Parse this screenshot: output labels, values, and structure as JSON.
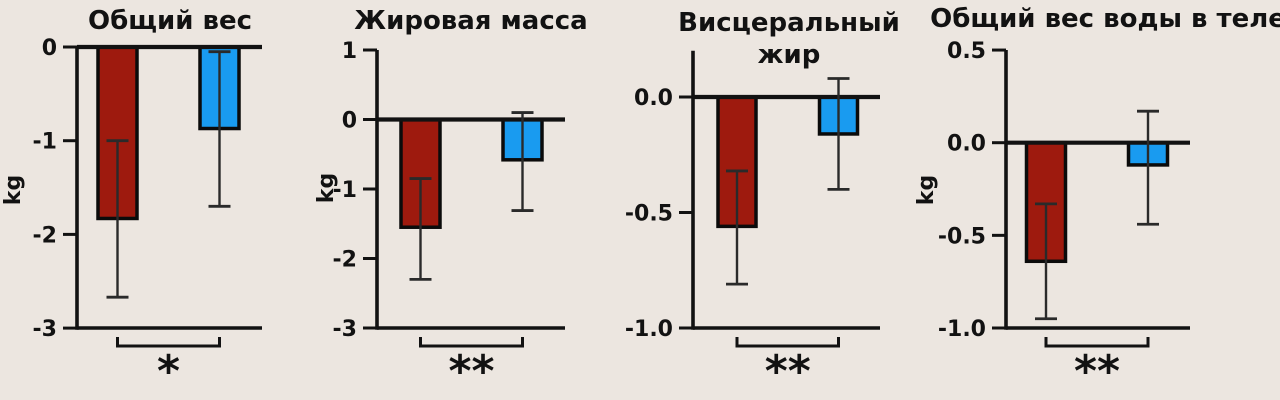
{
  "figure": {
    "background_color": "#ece6e0",
    "axis_color": "#121212",
    "error_bar_color": "#2a2a2a",
    "text_color": "#121212",
    "bar_colors": {
      "red": "#9e1a0e",
      "blue": "#199bf0"
    },
    "bar_outline_color": "#0b0b0b"
  },
  "chart_data": [
    {
      "type": "bar",
      "title": "Общий вес",
      "title_lines": [
        "Общий вес"
      ],
      "ylabel": "kg",
      "ylim": [
        -3,
        0
      ],
      "yticks": [
        {
          "value": 0,
          "label": "0"
        },
        {
          "value": -1,
          "label": "-1"
        },
        {
          "value": -2,
          "label": "-2"
        },
        {
          "value": -3,
          "label": "-3"
        }
      ],
      "series": [
        {
          "name": "red",
          "value": -1.83,
          "err_high": -1.0,
          "err_low": -2.67
        },
        {
          "name": "blue",
          "value": -0.87,
          "err_high": -0.05,
          "err_low": -1.7
        }
      ],
      "significance": "*"
    },
    {
      "type": "bar",
      "title": "Жировая масса",
      "title_lines": [
        "Жировая масса"
      ],
      "ylabel": "kg",
      "ylim": [
        -3,
        1
      ],
      "yticks": [
        {
          "value": 1,
          "label": "1"
        },
        {
          "value": 0,
          "label": "0"
        },
        {
          "value": -1,
          "label": "-1"
        },
        {
          "value": -2,
          "label": "-2"
        },
        {
          "value": -3,
          "label": "-3"
        }
      ],
      "series": [
        {
          "name": "red",
          "value": -1.55,
          "err_high": -0.85,
          "err_low": -2.3
        },
        {
          "name": "blue",
          "value": -0.58,
          "err_high": 0.1,
          "err_low": -1.31
        }
      ],
      "significance": "**"
    },
    {
      "type": "bar",
      "title": "Висцеральный жир",
      "title_lines": [
        "Висцеральный",
        "жир"
      ],
      "ylabel": "",
      "ylim": [
        -1.0,
        0.2
      ],
      "yticks": [
        {
          "value": 0,
          "label": "0.0"
        },
        {
          "value": -0.5,
          "label": "-0.5"
        },
        {
          "value": -1.0,
          "label": "-1.0"
        }
      ],
      "series": [
        {
          "name": "red",
          "value": -0.56,
          "err_high": -0.32,
          "err_low": -0.81
        },
        {
          "name": "blue",
          "value": -0.16,
          "err_high": 0.08,
          "err_low": -0.4
        }
      ],
      "significance": "**"
    },
    {
      "type": "bar",
      "title": "Общий вес воды в теле",
      "title_lines": [
        "Общий вес воды в теле"
      ],
      "ylabel": "kg",
      "ylim": [
        -1.0,
        0.5
      ],
      "yticks": [
        {
          "value": 0.5,
          "label": "0.5"
        },
        {
          "value": 0,
          "label": "0.0"
        },
        {
          "value": -0.5,
          "label": "-0.5"
        },
        {
          "value": -1.0,
          "label": "-1.0"
        }
      ],
      "series": [
        {
          "name": "red",
          "value": -0.64,
          "err_high": -0.33,
          "err_low": -0.95
        },
        {
          "name": "blue",
          "value": -0.12,
          "err_high": 0.17,
          "err_low": -0.44
        }
      ],
      "significance": "**"
    }
  ]
}
